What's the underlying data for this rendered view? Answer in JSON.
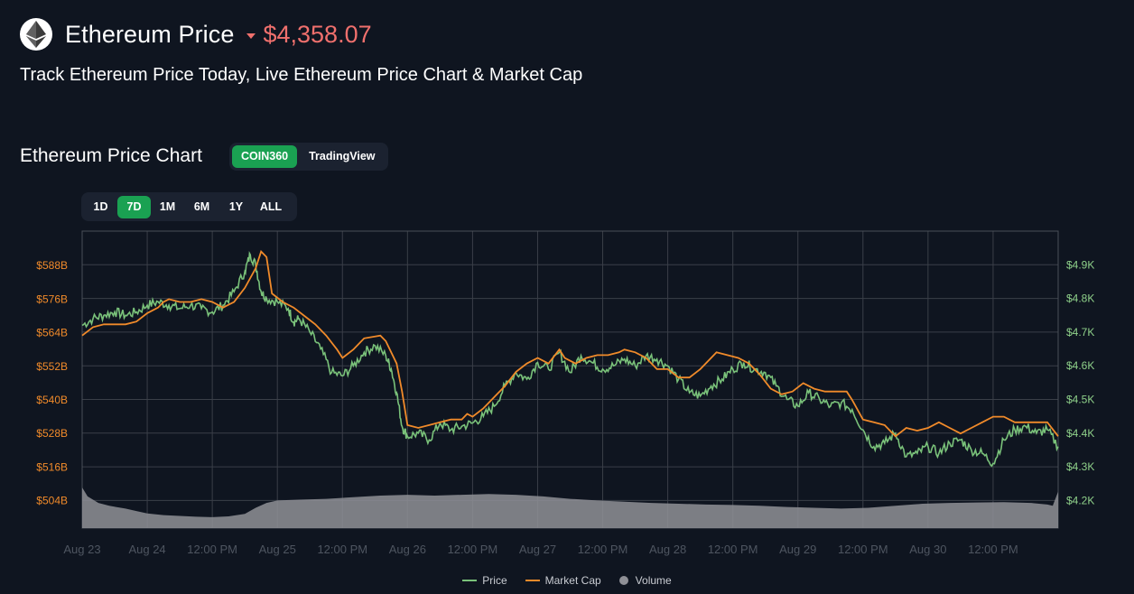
{
  "header": {
    "logo_icon": "ethereum-icon",
    "title": "Ethereum Price",
    "price": "$4,358.07",
    "price_direction": "down",
    "price_color": "#f0706d"
  },
  "subtitle": "Track Ethereum Price Today, Live Ethereum Price Chart & Market Cap",
  "chart_section": {
    "title": "Ethereum Price Chart",
    "sources": [
      {
        "label": "COIN360",
        "active": true
      },
      {
        "label": "TradingView",
        "active": false
      }
    ],
    "ranges": [
      {
        "label": "1D",
        "active": false
      },
      {
        "label": "7D",
        "active": true
      },
      {
        "label": "1M",
        "active": false
      },
      {
        "label": "6M",
        "active": false
      },
      {
        "label": "1Y",
        "active": false
      },
      {
        "label": "ALL",
        "active": false
      }
    ]
  },
  "colors": {
    "accent": "#1aa152",
    "price": "#7ac27a",
    "market_cap": "#f08a2a",
    "volume": "#8f9096",
    "left_axis_text": "#f08a2a",
    "right_axis_text": "#8fd18a"
  },
  "chart_data": {
    "type": "line",
    "title": "Ethereum Price Chart",
    "x_labels": [
      "Aug 23",
      "Aug 24",
      "12:00 PM",
      "Aug 25",
      "12:00 PM",
      "Aug 26",
      "12:00 PM",
      "Aug 27",
      "12:00 PM",
      "Aug 28",
      "12:00 PM",
      "Aug 29",
      "12:00 PM",
      "Aug 30",
      "12:00 PM"
    ],
    "x_range_hours": [
      0,
      180
    ],
    "x_label_hours": [
      0,
      12,
      24,
      36,
      48,
      60,
      72,
      84,
      96,
      108,
      120,
      132,
      144,
      156,
      168
    ],
    "left_axis": {
      "label": "Market Cap",
      "ticks": [
        "$588B",
        "$576B",
        "$564B",
        "$552B",
        "$540B",
        "$528B",
        "$516B",
        "$504B"
      ],
      "tick_values": [
        588,
        576,
        564,
        552,
        540,
        528,
        516,
        504
      ],
      "range_billions": [
        494.2,
        600.3
      ]
    },
    "right_axis": {
      "label": "Price",
      "ticks": [
        "$4.9K",
        "$4.8K",
        "$4.7K",
        "$4.6K",
        "$4.5K",
        "$4.4K",
        "$4.3K",
        "$4.2K"
      ],
      "tick_values": [
        4.9,
        4.8,
        4.7,
        4.6,
        4.5,
        4.4,
        4.3,
        4.2
      ],
      "range_thousands": [
        4.118,
        5.0
      ]
    },
    "series": [
      {
        "name": "Price",
        "unit": "thousand USD",
        "points": [
          [
            0,
            4.72
          ],
          [
            2,
            4.74
          ],
          [
            4,
            4.75
          ],
          [
            6,
            4.76
          ],
          [
            8,
            4.75
          ],
          [
            10,
            4.76
          ],
          [
            12,
            4.78
          ],
          [
            14,
            4.79
          ],
          [
            16,
            4.78
          ],
          [
            18,
            4.77
          ],
          [
            20,
            4.78
          ],
          [
            22,
            4.77
          ],
          [
            24,
            4.76
          ],
          [
            26,
            4.78
          ],
          [
            28,
            4.82
          ],
          [
            30,
            4.88
          ],
          [
            31,
            4.93
          ],
          [
            32,
            4.9
          ],
          [
            33,
            4.82
          ],
          [
            34,
            4.8
          ],
          [
            36,
            4.79
          ],
          [
            38,
            4.77
          ],
          [
            39,
            4.73
          ],
          [
            40,
            4.74
          ],
          [
            42,
            4.7
          ],
          [
            44,
            4.65
          ],
          [
            46,
            4.58
          ],
          [
            48,
            4.57
          ],
          [
            50,
            4.6
          ],
          [
            52,
            4.64
          ],
          [
            54,
            4.66
          ],
          [
            56,
            4.63
          ],
          [
            57,
            4.59
          ],
          [
            58,
            4.52
          ],
          [
            59,
            4.42
          ],
          [
            60,
            4.39
          ],
          [
            62,
            4.4
          ],
          [
            64,
            4.38
          ],
          [
            66,
            4.43
          ],
          [
            68,
            4.41
          ],
          [
            70,
            4.42
          ],
          [
            72,
            4.43
          ],
          [
            74,
            4.45
          ],
          [
            76,
            4.48
          ],
          [
            78,
            4.54
          ],
          [
            80,
            4.58
          ],
          [
            82,
            4.56
          ],
          [
            84,
            4.61
          ],
          [
            86,
            4.59
          ],
          [
            88,
            4.64
          ],
          [
            90,
            4.58
          ],
          [
            92,
            4.63
          ],
          [
            94,
            4.61
          ],
          [
            96,
            4.59
          ],
          [
            98,
            4.6
          ],
          [
            100,
            4.62
          ],
          [
            102,
            4.6
          ],
          [
            104,
            4.63
          ],
          [
            106,
            4.62
          ],
          [
            108,
            4.6
          ],
          [
            110,
            4.56
          ],
          [
            112,
            4.52
          ],
          [
            114,
            4.51
          ],
          [
            116,
            4.54
          ],
          [
            118,
            4.56
          ],
          [
            120,
            4.59
          ],
          [
            122,
            4.61
          ],
          [
            124,
            4.59
          ],
          [
            126,
            4.58
          ],
          [
            128,
            4.54
          ],
          [
            130,
            4.5
          ],
          [
            132,
            4.48
          ],
          [
            134,
            4.52
          ],
          [
            136,
            4.5
          ],
          [
            138,
            4.48
          ],
          [
            140,
            4.49
          ],
          [
            142,
            4.47
          ],
          [
            144,
            4.41
          ],
          [
            146,
            4.36
          ],
          [
            148,
            4.37
          ],
          [
            150,
            4.4
          ],
          [
            152,
            4.33
          ],
          [
            154,
            4.34
          ],
          [
            156,
            4.36
          ],
          [
            158,
            4.34
          ],
          [
            160,
            4.37
          ],
          [
            162,
            4.38
          ],
          [
            164,
            4.35
          ],
          [
            166,
            4.34
          ],
          [
            168,
            4.31
          ],
          [
            170,
            4.38
          ],
          [
            172,
            4.41
          ],
          [
            174,
            4.42
          ],
          [
            176,
            4.4
          ],
          [
            178,
            4.41
          ],
          [
            180,
            4.36
          ]
        ]
      },
      {
        "name": "Market Cap",
        "unit": "billion USD",
        "points": [
          [
            0,
            563
          ],
          [
            2,
            566
          ],
          [
            4,
            567
          ],
          [
            6,
            567
          ],
          [
            8,
            567
          ],
          [
            10,
            568
          ],
          [
            12,
            571
          ],
          [
            14,
            573
          ],
          [
            15,
            575
          ],
          [
            16,
            576
          ],
          [
            18,
            575
          ],
          [
            20,
            575
          ],
          [
            22,
            576
          ],
          [
            24,
            575
          ],
          [
            26,
            573
          ],
          [
            28,
            575
          ],
          [
            30,
            580
          ],
          [
            32,
            587
          ],
          [
            33,
            593
          ],
          [
            34,
            591
          ],
          [
            35,
            578
          ],
          [
            37,
            575
          ],
          [
            39,
            573
          ],
          [
            41,
            570
          ],
          [
            43,
            567
          ],
          [
            45,
            563
          ],
          [
            47,
            558
          ],
          [
            48,
            555
          ],
          [
            50,
            558
          ],
          [
            52,
            562
          ],
          [
            55,
            563
          ],
          [
            56,
            561
          ],
          [
            58,
            553
          ],
          [
            59,
            543
          ],
          [
            60,
            531
          ],
          [
            62,
            530
          ],
          [
            64,
            531
          ],
          [
            66,
            532
          ],
          [
            68,
            533
          ],
          [
            70,
            533
          ],
          [
            71,
            535
          ],
          [
            72,
            534
          ],
          [
            74,
            537
          ],
          [
            76,
            541
          ],
          [
            78,
            545
          ],
          [
            80,
            550
          ],
          [
            82,
            553
          ],
          [
            84,
            555
          ],
          [
            86,
            553
          ],
          [
            88,
            558
          ],
          [
            89,
            555
          ],
          [
            91,
            553
          ],
          [
            93,
            555
          ],
          [
            95,
            556
          ],
          [
            97,
            556
          ],
          [
            99,
            557
          ],
          [
            100,
            558
          ],
          [
            102,
            557
          ],
          [
            104,
            555
          ],
          [
            106,
            551
          ],
          [
            108,
            551
          ],
          [
            110,
            548
          ],
          [
            112,
            548
          ],
          [
            114,
            551
          ],
          [
            116,
            555
          ],
          [
            117,
            557
          ],
          [
            119,
            556
          ],
          [
            121,
            555
          ],
          [
            123,
            553
          ],
          [
            125,
            549
          ],
          [
            127,
            544
          ],
          [
            129,
            542
          ],
          [
            131,
            543
          ],
          [
            133,
            546
          ],
          [
            135,
            544
          ],
          [
            137,
            543
          ],
          [
            139,
            543
          ],
          [
            141,
            543
          ],
          [
            142,
            540
          ],
          [
            144,
            533
          ],
          [
            146,
            532
          ],
          [
            148,
            531
          ],
          [
            150,
            527
          ],
          [
            152,
            530
          ],
          [
            154,
            529
          ],
          [
            156,
            530
          ],
          [
            158,
            532
          ],
          [
            160,
            530
          ],
          [
            162,
            528
          ],
          [
            164,
            530
          ],
          [
            166,
            532
          ],
          [
            168,
            534
          ],
          [
            170,
            534
          ],
          [
            172,
            532
          ],
          [
            174,
            532
          ],
          [
            178,
            532
          ],
          [
            180,
            527
          ]
        ]
      },
      {
        "name": "Volume",
        "unit": "relative",
        "points": [
          [
            0,
            1.0
          ],
          [
            1,
            0.78
          ],
          [
            3,
            0.62
          ],
          [
            5,
            0.55
          ],
          [
            8,
            0.48
          ],
          [
            10,
            0.42
          ],
          [
            12,
            0.36
          ],
          [
            15,
            0.32
          ],
          [
            18,
            0.3
          ],
          [
            21,
            0.28
          ],
          [
            24,
            0.27
          ],
          [
            27,
            0.29
          ],
          [
            30,
            0.35
          ],
          [
            32,
            0.5
          ],
          [
            34,
            0.62
          ],
          [
            36,
            0.68
          ],
          [
            40,
            0.7
          ],
          [
            45,
            0.72
          ],
          [
            50,
            0.76
          ],
          [
            55,
            0.8
          ],
          [
            60,
            0.82
          ],
          [
            65,
            0.8
          ],
          [
            70,
            0.82
          ],
          [
            75,
            0.84
          ],
          [
            80,
            0.82
          ],
          [
            85,
            0.78
          ],
          [
            90,
            0.72
          ],
          [
            95,
            0.68
          ],
          [
            100,
            0.65
          ],
          [
            105,
            0.62
          ],
          [
            110,
            0.6
          ],
          [
            115,
            0.58
          ],
          [
            120,
            0.57
          ],
          [
            125,
            0.55
          ],
          [
            130,
            0.52
          ],
          [
            135,
            0.5
          ],
          [
            140,
            0.48
          ],
          [
            145,
            0.5
          ],
          [
            150,
            0.55
          ],
          [
            155,
            0.6
          ],
          [
            160,
            0.62
          ],
          [
            165,
            0.63
          ],
          [
            170,
            0.64
          ],
          [
            175,
            0.62
          ],
          [
            178,
            0.58
          ],
          [
            179,
            0.55
          ],
          [
            180,
            0.9
          ]
        ]
      }
    ],
    "legend": [
      "Price",
      "Market Cap",
      "Volume"
    ],
    "legend_position": "bottom-center",
    "grid": true
  }
}
